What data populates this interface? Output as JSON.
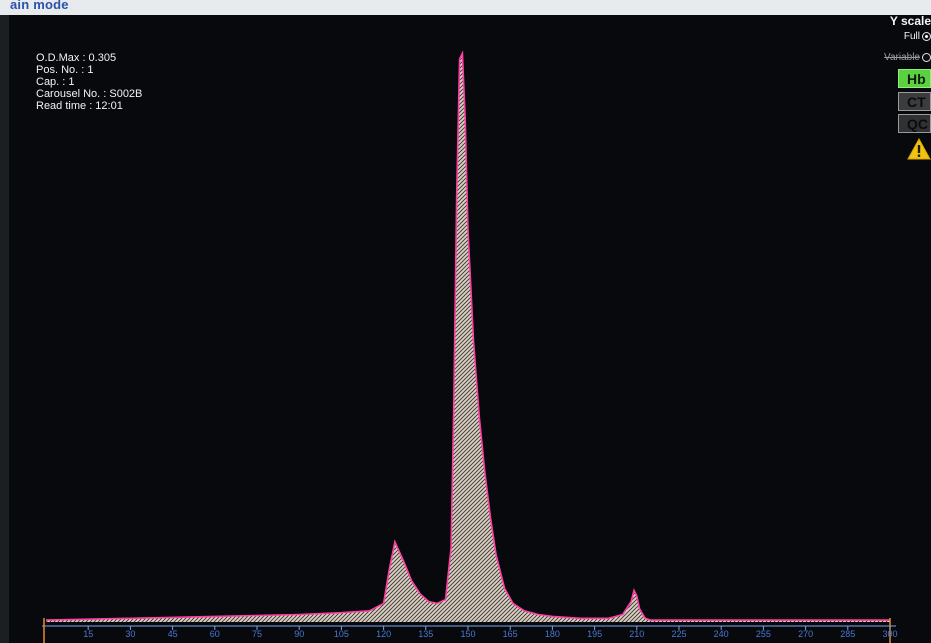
{
  "header": {
    "mode_label": "ain mode"
  },
  "info": {
    "od_max": "O.D.Max : 0.305",
    "pos_no": "Pos. No. : 1",
    "cap": "Cap. : 1",
    "carousel_no": "Carousel No. : S002B",
    "read_time": "Read time : 12:01"
  },
  "y_scale": {
    "title": "Y scale",
    "full_label": "Full",
    "variable_label": "Variable",
    "selected": "Full"
  },
  "side_buttons": {
    "hb": "Hb",
    "ct": "CT",
    "qc": "QC"
  },
  "warning": {
    "icon": "warning-icon",
    "color": "#f2c40f"
  },
  "colors": {
    "trace": "#ff3ea5",
    "fill": "#d8d0c4",
    "axis": "#7aa2e8",
    "tick_text": "#4a78d6"
  },
  "chart_data": {
    "type": "area",
    "title": "",
    "xlabel": "",
    "ylabel": "",
    "x_ticks": [
      15,
      30,
      45,
      60,
      75,
      90,
      105,
      120,
      135,
      150,
      165,
      180,
      195,
      210,
      225,
      240,
      255,
      270,
      285,
      300
    ],
    "xlim": [
      0,
      303
    ],
    "ylim": [
      0,
      0.31
    ],
    "series": [
      {
        "x": [
          0,
          30,
          60,
          90,
          105,
          115,
          120,
          122,
          124,
          127,
          130,
          133,
          136,
          139,
          142,
          144,
          145,
          146,
          147,
          148,
          149,
          150,
          152,
          154,
          156,
          158,
          160,
          163,
          166,
          170,
          175,
          180,
          190,
          200,
          205,
          208,
          209,
          210,
          211,
          213,
          215,
          225,
          240,
          255,
          270,
          285,
          300
        ],
        "y": [
          0.001,
          0.002,
          0.003,
          0.004,
          0.005,
          0.006,
          0.01,
          0.028,
          0.043,
          0.033,
          0.022,
          0.015,
          0.011,
          0.01,
          0.012,
          0.04,
          0.12,
          0.23,
          0.302,
          0.305,
          0.27,
          0.21,
          0.15,
          0.11,
          0.08,
          0.056,
          0.036,
          0.018,
          0.01,
          0.006,
          0.004,
          0.003,
          0.002,
          0.002,
          0.004,
          0.011,
          0.017,
          0.014,
          0.007,
          0.002,
          0.001,
          0.001,
          0.001,
          0.001,
          0.001,
          0.001,
          0.001
        ]
      }
    ]
  }
}
